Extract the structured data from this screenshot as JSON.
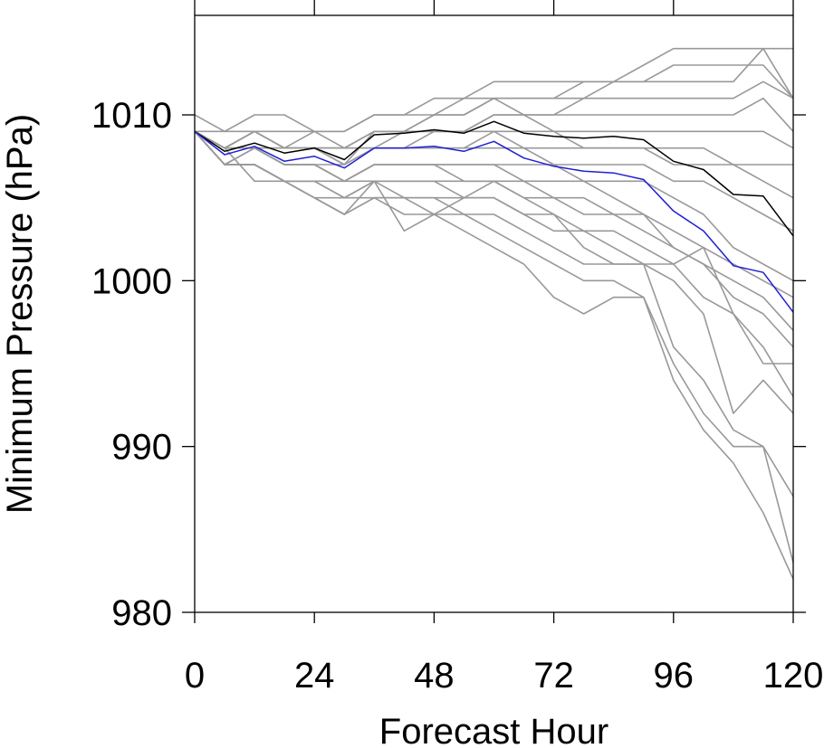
{
  "chart_data": {
    "type": "line",
    "title": "",
    "xlabel": "Forecast Hour",
    "ylabel": "Minimum Pressure (hPa)",
    "xlim": [
      0,
      120
    ],
    "ylim": [
      980,
      1016
    ],
    "xticks": [
      0,
      24,
      48,
      72,
      96,
      120
    ],
    "yticks": [
      980,
      990,
      1000,
      1010
    ],
    "x": [
      0,
      6,
      12,
      18,
      24,
      30,
      36,
      42,
      48,
      54,
      60,
      66,
      72,
      78,
      84,
      90,
      96,
      102,
      108,
      114,
      120
    ],
    "grid": false,
    "legend": "none",
    "series": [
      {
        "color": "#999999",
        "values": [
          1009,
          1008,
          1009,
          1008,
          1008,
          1007,
          1009,
          1009,
          1009,
          1009,
          1010,
          1010,
          1010,
          1011,
          1012,
          1013,
          1014,
          1014,
          1014,
          1014,
          1014
        ]
      },
      {
        "color": "#999999",
        "values": [
          1009,
          1008,
          1009,
          1008,
          1008,
          1008,
          1009,
          1009,
          1010,
          1010,
          1011,
          1011,
          1011,
          1012,
          1012,
          1012,
          1013,
          1013,
          1013,
          1013,
          1011
        ]
      },
      {
        "color": "#999999",
        "values": [
          1010,
          1009,
          1010,
          1010,
          1009,
          1009,
          1010,
          1010,
          1011,
          1011,
          1012,
          1012,
          1012,
          1012,
          1012,
          1012,
          1012,
          1012,
          1012,
          1014,
          1011
        ]
      },
      {
        "color": "#999999",
        "values": [
          1009,
          1009,
          1009,
          1009,
          1009,
          1009,
          1010,
          1010,
          1010,
          1011,
          1011,
          1011,
          1011,
          1011,
          1011,
          1011,
          1011,
          1011,
          1011,
          1012,
          1011
        ]
      },
      {
        "color": "#999999",
        "values": [
          1009,
          1008,
          1009,
          1008,
          1009,
          1008,
          1009,
          1009,
          1010,
          1010,
          1011,
          1010,
          1010,
          1010,
          1010,
          1010,
          1010,
          1010,
          1010,
          1011,
          1009
        ]
      },
      {
        "color": "#999999",
        "values": [
          1009,
          1008,
          1009,
          1008,
          1008,
          1008,
          1008,
          1009,
          1009,
          1009,
          1010,
          1010,
          1009,
          1009,
          1009,
          1009,
          1009,
          1009,
          1009,
          1009,
          1008
        ]
      },
      {
        "color": "#999999",
        "values": [
          1009,
          1008,
          1008,
          1008,
          1008,
          1008,
          1008,
          1008,
          1009,
          1009,
          1009,
          1009,
          1009,
          1008,
          1008,
          1008,
          1008,
          1008,
          1007,
          1007,
          1007
        ]
      },
      {
        "color": "#999999",
        "values": [
          1009,
          1008,
          1008,
          1008,
          1008,
          1007,
          1008,
          1008,
          1008,
          1008,
          1009,
          1008,
          1008,
          1008,
          1008,
          1008,
          1007,
          1007,
          1007,
          1006,
          1005
        ]
      },
      {
        "color": "#999999",
        "values": [
          1009,
          1008,
          1008,
          1007,
          1007,
          1007,
          1008,
          1008,
          1008,
          1008,
          1008,
          1008,
          1007,
          1007,
          1007,
          1007,
          1006,
          1006,
          1005,
          1004,
          1003
        ]
      },
      {
        "color": "#999999",
        "values": [
          1009,
          1007,
          1008,
          1007,
          1007,
          1006,
          1007,
          1007,
          1007,
          1007,
          1007,
          1007,
          1007,
          1006,
          1006,
          1006,
          1005,
          1004,
          1002,
          1001,
          1000
        ]
      },
      {
        "color": "#999999",
        "values": [
          1009,
          1007,
          1008,
          1007,
          1007,
          1006,
          1007,
          1007,
          1007,
          1007,
          1007,
          1006,
          1006,
          1006,
          1005,
          1004,
          1003,
          1002,
          1001,
          1000,
          999
        ]
      },
      {
        "color": "#999999",
        "values": [
          1009,
          1007,
          1008,
          1007,
          1007,
          1006,
          1007,
          1007,
          1007,
          1006,
          1006,
          1006,
          1005,
          1005,
          1004,
          1004,
          1002,
          1001,
          1000,
          999,
          997
        ]
      },
      {
        "color": "#999999",
        "values": [
          1009,
          1007,
          1007,
          1006,
          1006,
          1006,
          1006,
          1006,
          1006,
          1006,
          1006,
          1005,
          1005,
          1004,
          1004,
          1003,
          1002,
          1001,
          999,
          998,
          996
        ]
      },
      {
        "color": "#999999",
        "values": [
          1009,
          1007,
          1007,
          1006,
          1006,
          1005,
          1006,
          1006,
          1006,
          1005,
          1006,
          1005,
          1004,
          1003,
          1003,
          1002,
          1001,
          999,
          998,
          996,
          993
        ]
      },
      {
        "color": "#999999",
        "values": [
          1009,
          1007,
          1007,
          1006,
          1005,
          1005,
          1006,
          1005,
          1005,
          1005,
          1005,
          1004,
          1004,
          1002,
          1001,
          1001,
          1001,
          1002,
          998,
          995,
          995
        ]
      },
      {
        "color": "#999999",
        "values": [
          1009,
          1007,
          1007,
          1006,
          1005,
          1004,
          1006,
          1003,
          1004,
          1005,
          1005,
          1004,
          1003,
          1003,
          1002,
          1001,
          1000,
          998,
          992,
          994,
          992
        ]
      },
      {
        "color": "#999999",
        "values": [
          1009,
          1007,
          1007,
          1006,
          1005,
          1004,
          1005,
          1004,
          1004,
          1004,
          1004,
          1003,
          1002,
          1001,
          1001,
          1001,
          996,
          994,
          991,
          990,
          987
        ]
      },
      {
        "color": "#999999",
        "values": [
          1009,
          1007,
          1007,
          1006,
          1005,
          1004,
          1005,
          1005,
          1004,
          1003,
          1002,
          1001,
          999,
          998,
          999,
          999,
          995,
          992,
          990,
          990,
          983
        ]
      },
      {
        "color": "#999999",
        "values": [
          1009,
          1008,
          1006,
          1006,
          1006,
          1005,
          1005,
          1005,
          1005,
          1004,
          1003,
          1002,
          1001,
          1000,
          1000,
          999,
          994,
          991,
          989,
          986,
          982
        ]
      },
      {
        "color": "#000000",
        "values": [
          1009,
          1007.8,
          1008.3,
          1007.7,
          1008.0,
          1007.3,
          1008.8,
          1008.9,
          1009.1,
          1008.9,
          1009.6,
          1008.9,
          1008.7,
          1008.6,
          1008.7,
          1008.5,
          1007.2,
          1006.7,
          1005.2,
          1005.1,
          1002.7
        ]
      },
      {
        "color": "#1f1fd6",
        "values": [
          1009,
          1007.6,
          1008.1,
          1007.2,
          1007.5,
          1006.8,
          1008.0,
          1008.0,
          1008.1,
          1007.8,
          1008.4,
          1007.4,
          1006.9,
          1006.6,
          1006.5,
          1006.1,
          1004.2,
          1003.0,
          1000.9,
          1000.5,
          998.1
        ]
      }
    ]
  }
}
